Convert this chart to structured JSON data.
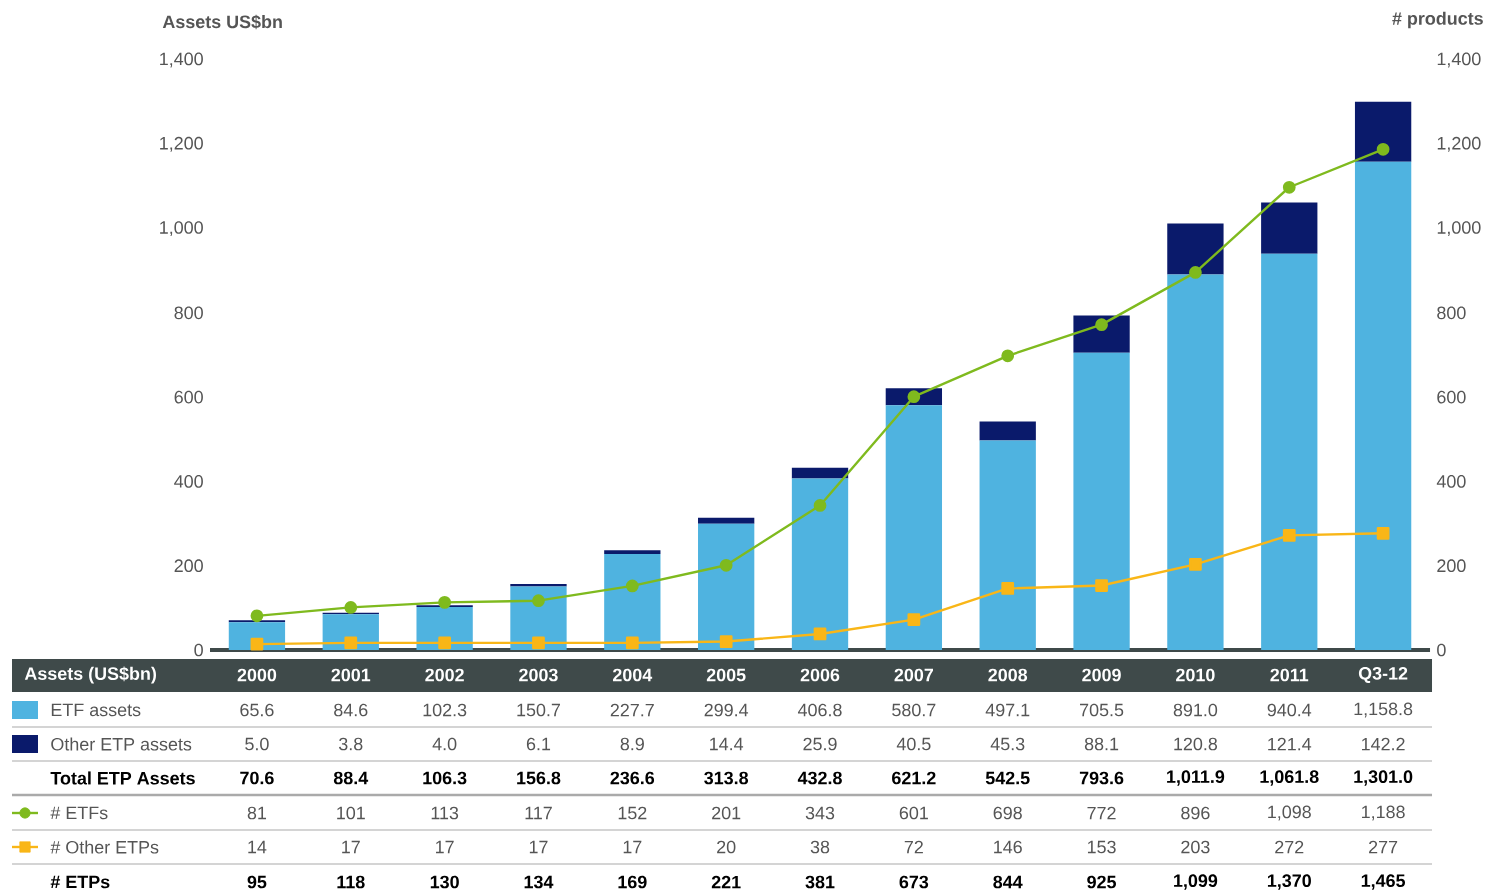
{
  "chart_data": {
    "type": "bar",
    "ylabel": "Assets US$bn",
    "y2label": "# products",
    "categories": [
      "2000",
      "2001",
      "2002",
      "2003",
      "2004",
      "2005",
      "2006",
      "2007",
      "2008",
      "2009",
      "2010",
      "2011",
      "Q3-12"
    ],
    "series": [
      {
        "name": "ETF assets",
        "color": "#4fb3e0",
        "values": [
          65.6,
          84.6,
          102.3,
          150.7,
          227.7,
          299.4,
          406.8,
          580.7,
          497.1,
          705.5,
          891.0,
          940.4,
          1158.8
        ],
        "value_labels": [
          "65.6",
          "84.6",
          "102.3",
          "150.7",
          "227.7",
          "299.4",
          "406.8",
          "580.7",
          "497.1",
          "705.5",
          "891.0",
          "940.4",
          "1,158.8"
        ]
      },
      {
        "name": "Other ETP assets",
        "color": "#0a1a6b",
        "values": [
          5.0,
          3.8,
          4.0,
          6.1,
          8.9,
          14.4,
          25.9,
          40.5,
          45.3,
          88.1,
          120.8,
          121.4,
          142.2
        ],
        "value_labels": [
          "5.0",
          "3.8",
          "4.0",
          "6.1",
          "8.9",
          "14.4",
          "25.9",
          "40.5",
          "45.3",
          "88.1",
          "120.8",
          "121.4",
          "142.2"
        ]
      },
      {
        "name": "# ETFs",
        "type": "line",
        "axis": "y2",
        "marker": "circle",
        "color": "#7fba1e",
        "values": [
          81,
          101,
          113,
          117,
          152,
          201,
          343,
          601,
          698,
          772,
          896,
          1098,
          1188
        ],
        "value_labels": [
          "81",
          "101",
          "113",
          "117",
          "152",
          "201",
          "343",
          "601",
          "698",
          "772",
          "896",
          "1,098",
          "1,188"
        ]
      },
      {
        "name": "# Other ETPs",
        "type": "line",
        "axis": "y2",
        "marker": "square",
        "color": "#f9b617",
        "values": [
          14,
          17,
          17,
          17,
          17,
          20,
          38,
          72,
          146,
          153,
          203,
          272,
          277
        ],
        "value_labels": [
          "14",
          "17",
          "17",
          "17",
          "17",
          "20",
          "38",
          "72",
          "146",
          "153",
          "203",
          "272",
          "277"
        ]
      }
    ],
    "stacked": true,
    "legend": "bottom left",
    "ylim": [
      0,
      1400
    ],
    "yticks": [
      0,
      200,
      400,
      600,
      800,
      {
        "value": 1000,
        "label": "1,000"
      },
      {
        "value": 1200,
        "label": "1,200"
      },
      {
        "value": 1400,
        "label": "1,400"
      }
    ],
    "y2lim": [
      0,
      1400
    ],
    "y2ticks": [
      0,
      200,
      400,
      600,
      800,
      {
        "value": 1000,
        "label": "1,000"
      },
      {
        "value": 1200,
        "label": "1,200"
      },
      {
        "value": 1400,
        "label": "1,400"
      }
    ],
    "annotations": [
      "Assets (US$bn)",
      "Total ETP Assets",
      "70.6",
      "88.4",
      "106.3",
      "156.8",
      "236.6",
      "313.8",
      "432.8",
      "621.2",
      "542.5",
      "793.6",
      "1,011.9",
      "1,061.8",
      "1,301.0",
      "# ETPs",
      "95",
      "118",
      "130",
      "134",
      "169",
      "221",
      "381",
      "673",
      "844",
      "925",
      "1,099",
      "1,370",
      "1,465"
    ]
  }
}
